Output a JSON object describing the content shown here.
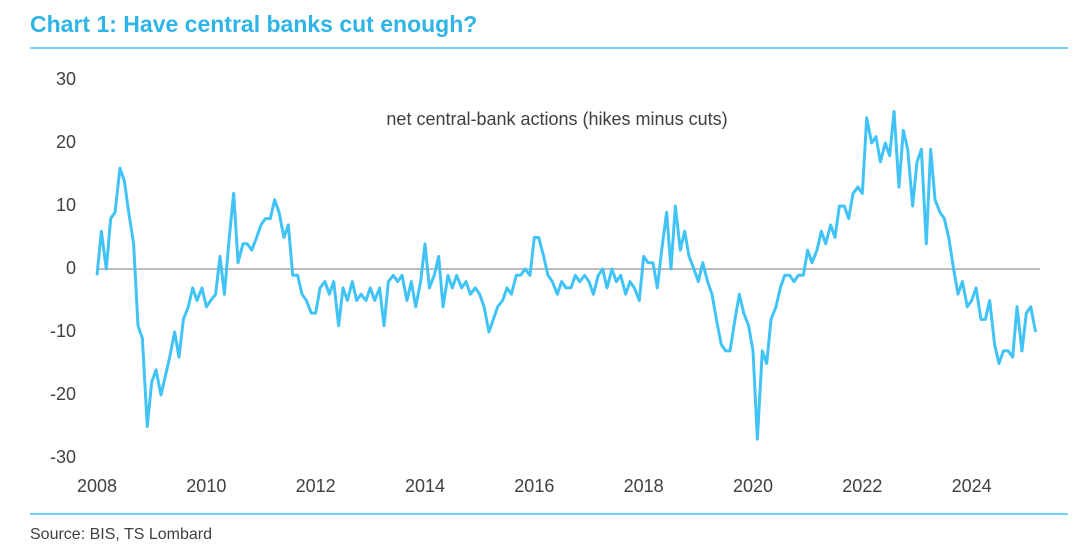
{
  "chart_data": {
    "type": "line",
    "title": "Chart 1: Have central banks cut enough?",
    "annotation": "net central-bank actions (hikes minus cuts)",
    "source": "Source: BIS, TS Lombard",
    "x": [
      2008.0,
      2008.08,
      2008.17,
      2008.25,
      2008.33,
      2008.42,
      2008.5,
      2008.58,
      2008.67,
      2008.75,
      2008.83,
      2008.92,
      2009.0,
      2009.08,
      2009.17,
      2009.25,
      2009.33,
      2009.42,
      2009.5,
      2009.58,
      2009.67,
      2009.75,
      2009.83,
      2009.92,
      2010.0,
      2010.08,
      2010.17,
      2010.25,
      2010.33,
      2010.42,
      2010.5,
      2010.58,
      2010.67,
      2010.75,
      2010.83,
      2010.92,
      2011.0,
      2011.08,
      2011.17,
      2011.25,
      2011.33,
      2011.42,
      2011.5,
      2011.58,
      2011.67,
      2011.75,
      2011.83,
      2011.92,
      2012.0,
      2012.08,
      2012.17,
      2012.25,
      2012.33,
      2012.42,
      2012.5,
      2012.58,
      2012.67,
      2012.75,
      2012.83,
      2012.92,
      2013.0,
      2013.08,
      2013.17,
      2013.25,
      2013.33,
      2013.42,
      2013.5,
      2013.58,
      2013.67,
      2013.75,
      2013.83,
      2013.92,
      2014.0,
      2014.08,
      2014.17,
      2014.25,
      2014.33,
      2014.42,
      2014.5,
      2014.58,
      2014.67,
      2014.75,
      2014.83,
      2014.92,
      2015.0,
      2015.08,
      2015.17,
      2015.25,
      2015.33,
      2015.42,
      2015.5,
      2015.58,
      2015.67,
      2015.75,
      2015.83,
      2015.92,
      2016.0,
      2016.08,
      2016.17,
      2016.25,
      2016.33,
      2016.42,
      2016.5,
      2016.58,
      2016.67,
      2016.75,
      2016.83,
      2016.92,
      2017.0,
      2017.08,
      2017.17,
      2017.25,
      2017.33,
      2017.42,
      2017.5,
      2017.58,
      2017.67,
      2017.75,
      2017.83,
      2017.92,
      2018.0,
      2018.08,
      2018.17,
      2018.25,
      2018.33,
      2018.42,
      2018.5,
      2018.58,
      2018.67,
      2018.75,
      2018.83,
      2018.92,
      2019.0,
      2019.08,
      2019.17,
      2019.25,
      2019.33,
      2019.42,
      2019.5,
      2019.58,
      2019.67,
      2019.75,
      2019.83,
      2019.92,
      2020.0,
      2020.08,
      2020.17,
      2020.25,
      2020.33,
      2020.42,
      2020.5,
      2020.58,
      2020.67,
      2020.75,
      2020.83,
      2020.92,
      2021.0,
      2021.08,
      2021.17,
      2021.25,
      2021.33,
      2021.42,
      2021.5,
      2021.58,
      2021.67,
      2021.75,
      2021.83,
      2021.92,
      2022.0,
      2022.08,
      2022.17,
      2022.25,
      2022.33,
      2022.42,
      2022.5,
      2022.58,
      2022.67,
      2022.75,
      2022.83,
      2022.92,
      2023.0,
      2023.08,
      2023.17,
      2023.25,
      2023.33,
      2023.42,
      2023.5,
      2023.58,
      2023.67,
      2023.75,
      2023.83,
      2023.92,
      2024.0,
      2024.08,
      2024.17,
      2024.25,
      2024.33,
      2024.42,
      2024.5,
      2024.58,
      2024.67,
      2024.75,
      2024.83,
      2024.92,
      2025.0,
      2025.08,
      2025.17
    ],
    "values": [
      -1,
      6,
      0,
      8,
      9,
      16,
      14,
      9,
      4,
      -9,
      -11,
      -25,
      -18,
      -16,
      -20,
      -17,
      -14,
      -10,
      -14,
      -8,
      -6,
      -3,
      -5,
      -3,
      -6,
      -5,
      -4,
      2,
      -4,
      5,
      12,
      1,
      4,
      4,
      3,
      5,
      7,
      8,
      8,
      11,
      9,
      5,
      7,
      -1,
      -1,
      -4,
      -5,
      -7,
      -7,
      -3,
      -2,
      -4,
      -2,
      -9,
      -3,
      -5,
      -2,
      -5,
      -4,
      -5,
      -3,
      -5,
      -3,
      -9,
      -2,
      -1,
      -2,
      -1,
      -5,
      -2,
      -6,
      -2,
      4,
      -3,
      -1,
      2,
      -6,
      -1,
      -3,
      -1,
      -3,
      -2,
      -4,
      -3,
      -4,
      -6,
      -10,
      -8,
      -6,
      -5,
      -3,
      -4,
      -1,
      -1,
      0,
      -1,
      5,
      5,
      2,
      -1,
      -2,
      -4,
      -2,
      -3,
      -3,
      -1,
      -2,
      -1,
      -2,
      -4,
      -1,
      0,
      -3,
      0,
      -2,
      -1,
      -4,
      -2,
      -3,
      -5,
      2,
      1,
      1,
      -3,
      3,
      9,
      0,
      10,
      3,
      6,
      2,
      0,
      -2,
      1,
      -2,
      -4,
      -8,
      -12,
      -13,
      -13,
      -8,
      -4,
      -7,
      -9,
      -13,
      -27,
      -13,
      -15,
      -8,
      -6,
      -3,
      -1,
      -1,
      -2,
      -1,
      -1,
      3,
      1,
      3,
      6,
      4,
      7,
      5,
      10,
      10,
      8,
      12,
      13,
      12,
      24,
      20,
      21,
      17,
      20,
      18,
      25,
      13,
      22,
      19,
      10,
      17,
      19,
      4,
      19,
      11,
      9,
      8,
      5,
      0,
      -4,
      -2,
      -6,
      -5,
      -3,
      -8,
      -8,
      -5,
      -12,
      -15,
      -13,
      -13,
      -14,
      -6,
      -13,
      -7,
      -6,
      -10
    ],
    "color": "#41c4f5",
    "xlim": [
      2008,
      2025.25
    ],
    "xticks": [
      2008,
      2010,
      2012,
      2014,
      2016,
      2018,
      2020,
      2022,
      2024
    ],
    "ylim": [
      -30,
      30
    ],
    "yticks": [
      -30,
      -20,
      -10,
      0,
      10,
      20,
      30
    ]
  }
}
